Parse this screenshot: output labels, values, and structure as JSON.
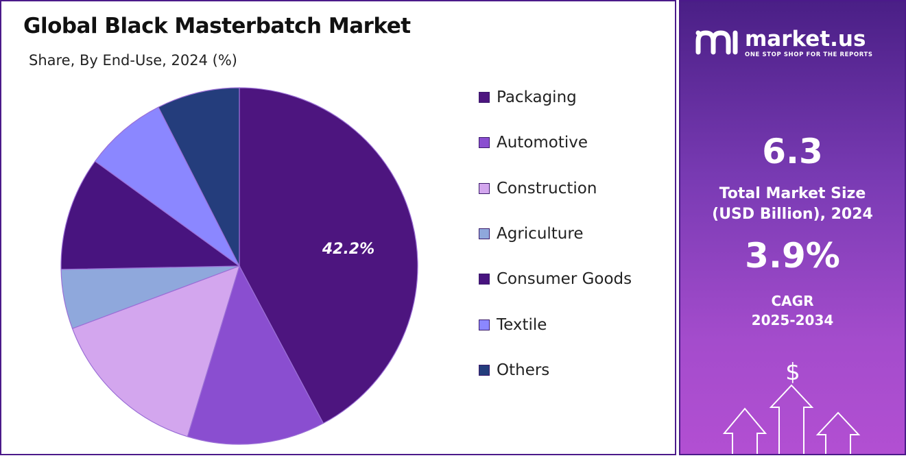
{
  "chart": {
    "title": "Global Black Masterbatch Market",
    "subtitle": "Share, By End-Use, 2024 (%)"
  },
  "chart_data": {
    "type": "pie",
    "title": "Global Black Masterbatch Market",
    "subtitle": "Share, By End-Use, 2024 (%)",
    "categories": [
      "Packaging",
      "Automotive",
      "Construction",
      "Agriculture",
      "Consumer Goods",
      "Textile",
      "Others"
    ],
    "values": [
      42.2,
      12.5,
      14.6,
      5.4,
      10.3,
      7.5,
      7.5
    ],
    "colors": [
      "#4d157f",
      "#8a4ed0",
      "#d3a6ee",
      "#8fa8dc",
      "#48147f",
      "#8b87ff",
      "#243d7c"
    ],
    "data_labels": [
      "42.2%",
      null,
      null,
      null,
      null,
      null,
      null
    ],
    "legend_position": "right",
    "start_angle": "12 o'clock",
    "direction": "clockwise"
  },
  "legend": {
    "items": [
      {
        "label": "Packaging",
        "color": "#4d157f"
      },
      {
        "label": "Automotive",
        "color": "#8a4ed0"
      },
      {
        "label": "Construction",
        "color": "#d3a6ee"
      },
      {
        "label": "Agriculture",
        "color": "#8fa8dc"
      },
      {
        "label": "Consumer Goods",
        "color": "#48147f"
      },
      {
        "label": "Textile",
        "color": "#8b87ff"
      },
      {
        "label": "Others",
        "color": "#243d7c"
      }
    ]
  },
  "brand": {
    "name": "market.us",
    "tagline": "ONE STOP SHOP FOR THE REPORTS",
    "logo_icon": "market-us-logo-icon"
  },
  "stats": {
    "market_size_value": "6.3",
    "market_size_label_line1": "Total Market Size",
    "market_size_label_line2": "(USD Billion), 2024",
    "cagr_value": "3.9%",
    "cagr_label_line1": "CAGR",
    "cagr_label_line2": "2025-2034",
    "growth_icon": "dollar-growth-arrows-icon"
  }
}
